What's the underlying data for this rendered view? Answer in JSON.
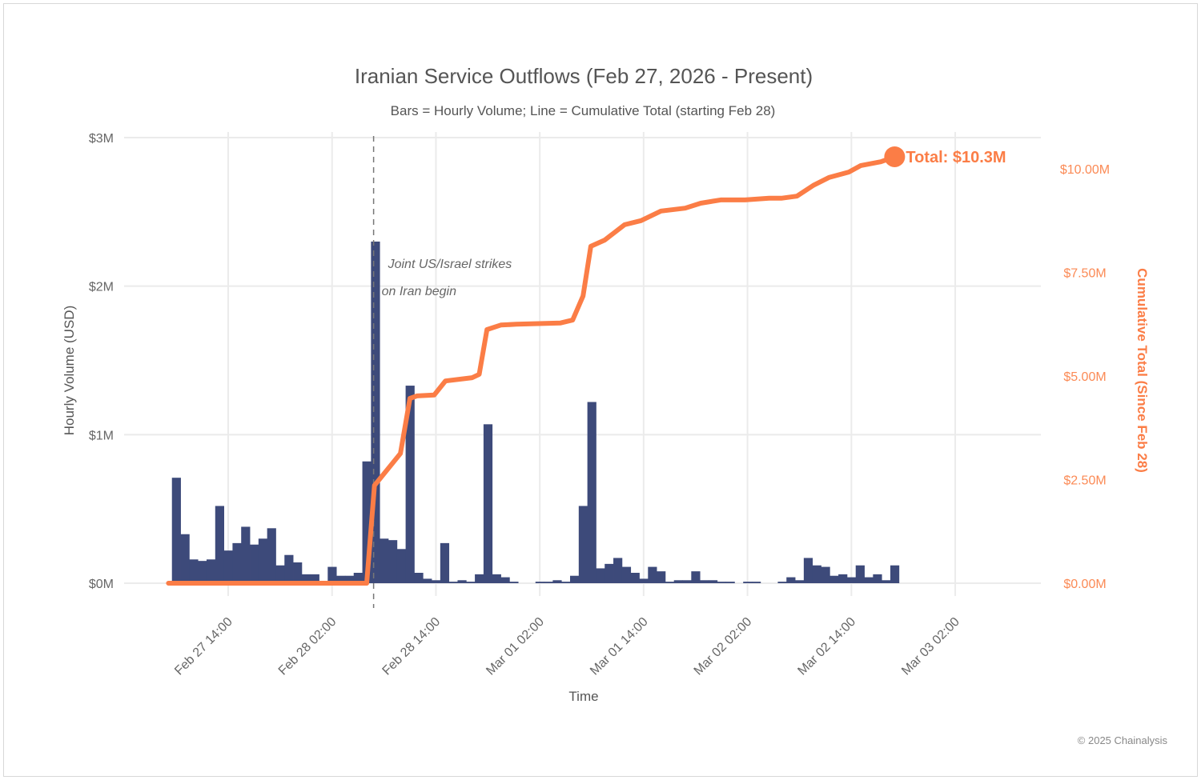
{
  "chart_data": {
    "type": "bar+line",
    "title": "Iranian Service Outflows (Feb 27, 2026 - Present)",
    "subtitle": "Bars = Hourly Volume; Line = Cumulative Total (starting Feb 28)",
    "xlabel": "Time",
    "ylabel": "Hourly Volume (USD)",
    "y2label": "Cumulative Total (Since Feb 28)",
    "x_unit": "hours since Feb 27 00:00",
    "xlim": [
      0,
      104
    ],
    "x_ticks": [
      {
        "hour": 14,
        "label": "Feb 27 14:00"
      },
      {
        "hour": 26,
        "label": "Feb 28 02:00"
      },
      {
        "hour": 38,
        "label": "Feb 28 14:00"
      },
      {
        "hour": 50,
        "label": "Mar 01 02:00"
      },
      {
        "hour": 62,
        "label": "Mar 01 14:00"
      },
      {
        "hour": 74,
        "label": "Mar 02 02:00"
      },
      {
        "hour": 86,
        "label": "Mar 02 14:00"
      },
      {
        "hour": 98,
        "label": "Mar 03 02:00"
      }
    ],
    "ylim": [
      0,
      3
    ],
    "y_ticks": [
      {
        "v": 0,
        "label": "$0M"
      },
      {
        "v": 1,
        "label": "$1M"
      },
      {
        "v": 2,
        "label": "$2M"
      },
      {
        "v": 3,
        "label": "$3M"
      }
    ],
    "y2lim": [
      0,
      10.3
    ],
    "y2_ticks": [
      {
        "v": 0,
        "label": "$0.00M"
      },
      {
        "v": 2.5,
        "label": "$2.50M"
      },
      {
        "v": 5,
        "label": "$5.00M"
      },
      {
        "v": 7.5,
        "label": "$7.50M"
      },
      {
        "v": 10,
        "label": "$10.00M"
      }
    ],
    "bars": {
      "name": "Hourly Volume ($M)",
      "start_hour": 8,
      "values": [
        0.71,
        0.33,
        0.16,
        0.15,
        0.16,
        0.52,
        0.22,
        0.27,
        0.38,
        0.26,
        0.3,
        0.37,
        0.12,
        0.19,
        0.14,
        0.06,
        0.06,
        0.01,
        0.11,
        0.05,
        0.05,
        0.07,
        0.82,
        2.3,
        0.3,
        0.29,
        0.23,
        1.33,
        0.07,
        0.03,
        0.02,
        0.27,
        0.01,
        0.02,
        0.01,
        0.06,
        1.07,
        0.06,
        0.04,
        0.01,
        0.0,
        0.0,
        0.01,
        0.01,
        0.02,
        0.01,
        0.05,
        0.52,
        1.22,
        0.1,
        0.13,
        0.17,
        0.11,
        0.07,
        0.03,
        0.11,
        0.08,
        0.01,
        0.02,
        0.02,
        0.08,
        0.02,
        0.02,
        0.01,
        0.01,
        0.0,
        0.01,
        0.01,
        0.0,
        0.0,
        0.01,
        0.04,
        0.02,
        0.17,
        0.12,
        0.11,
        0.05,
        0.06,
        0.04,
        0.12,
        0.04,
        0.06,
        0.02,
        0.12
      ]
    },
    "line": {
      "name": "Cumulative Total ($M)",
      "points": [
        [
          7.1,
          0
        ],
        [
          30,
          0
        ],
        [
          30.9,
          2.36
        ],
        [
          33.9,
          3.13
        ],
        [
          35,
          4.46
        ],
        [
          35.8,
          4.52
        ],
        [
          37.8,
          4.54
        ],
        [
          39.1,
          4.88
        ],
        [
          42.2,
          4.96
        ],
        [
          43,
          5.04
        ],
        [
          43.9,
          6.12
        ],
        [
          45.5,
          6.23
        ],
        [
          47.3,
          6.25
        ],
        [
          52.4,
          6.28
        ],
        [
          53.8,
          6.35
        ],
        [
          55,
          6.93
        ],
        [
          55.9,
          8.13
        ],
        [
          57.5,
          8.28
        ],
        [
          59.8,
          8.65
        ],
        [
          61.7,
          8.75
        ],
        [
          64,
          8.98
        ],
        [
          66.8,
          9.05
        ],
        [
          68.6,
          9.17
        ],
        [
          70.9,
          9.25
        ],
        [
          73.7,
          9.25
        ],
        [
          76.5,
          9.29
        ],
        [
          77.9,
          9.29
        ],
        [
          79.7,
          9.34
        ],
        [
          81.6,
          9.6
        ],
        [
          83.4,
          9.79
        ],
        [
          85.7,
          9.92
        ],
        [
          87.1,
          10.08
        ],
        [
          89.4,
          10.17
        ],
        [
          91,
          10.29
        ]
      ]
    },
    "event": {
      "hour": 30.8,
      "label_line1": "Joint US/Israel strikes",
      "label_line2": "on Iran begin"
    },
    "end_label": "Total: $10.3M",
    "grid": true,
    "colors": {
      "bars": "#3d4a7a",
      "line": "#fb7d46"
    }
  },
  "credit": "© 2025 Chainalysis"
}
